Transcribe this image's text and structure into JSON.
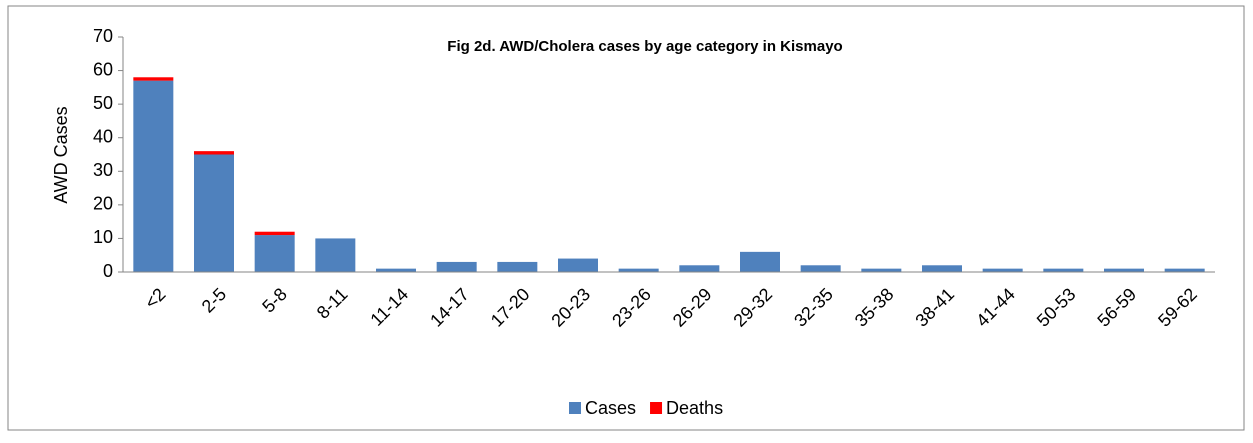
{
  "chart_data": {
    "type": "stacked_bar",
    "title": "Fig 2d. AWD/Cholera cases by age category in Kismayo",
    "ylabel": "AWD Cases",
    "categories": [
      "<2",
      "2-5",
      "5-8",
      "8-11",
      "11-14",
      "14-17",
      "17-20",
      "20-23",
      "23-26",
      "26-29",
      "29-32",
      "32-35",
      "35-38",
      "38-41",
      "41-44",
      "50-53",
      "56-59",
      "59-62"
    ],
    "series": [
      {
        "name": "Cases",
        "color": "#4f81bd",
        "values": [
          57,
          35,
          11,
          10,
          1,
          3,
          3,
          4,
          1,
          2,
          6,
          2,
          1,
          2,
          1,
          1,
          1,
          1
        ]
      },
      {
        "name": "Deaths",
        "color": "#ff0000",
        "values": [
          1,
          1,
          1,
          0,
          0,
          0,
          0,
          0,
          0,
          0,
          0,
          0,
          0,
          0,
          0,
          0,
          0,
          0
        ]
      }
    ],
    "ylim": [
      0,
      70
    ],
    "yticks": [
      0,
      10,
      20,
      30,
      40,
      50,
      60,
      70
    ],
    "legend": "bottom"
  }
}
